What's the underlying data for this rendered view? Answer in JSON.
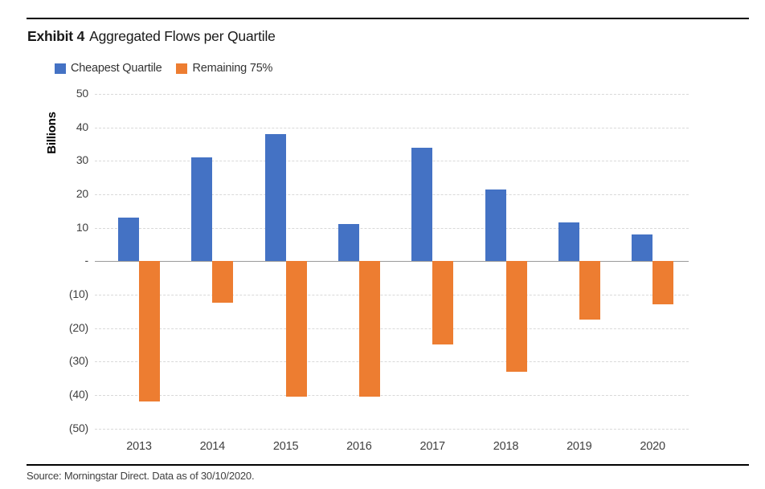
{
  "title": {
    "prefix": "Exhibit 4",
    "text": "Aggregated Flows per Quartile"
  },
  "legend": [
    {
      "label": "Cheapest Quartile",
      "color": "#4472C4"
    },
    {
      "label": "Remaining 75%",
      "color": "#ED7D31"
    }
  ],
  "y_axis": {
    "label": "Billions",
    "ticks": [
      "50",
      "40",
      "30",
      "20",
      "10",
      "-",
      "(10)",
      "(20)",
      "(30)",
      "(40)",
      "(50)"
    ],
    "tick_values": [
      50,
      40,
      30,
      20,
      10,
      0,
      -10,
      -20,
      -30,
      -40,
      -50
    ]
  },
  "chart_data": {
    "type": "bar",
    "title": "Exhibit 4 Aggregated Flows per Quartile",
    "categories": [
      "2013",
      "2014",
      "2015",
      "2016",
      "2017",
      "2018",
      "2019",
      "2020"
    ],
    "series": [
      {
        "name": "Cheapest Quartile",
        "color": "#4472C4",
        "values": [
          13,
          31,
          38,
          11,
          34,
          21.5,
          11.5,
          8
        ]
      },
      {
        "name": "Remaining 75%",
        "color": "#ED7D31",
        "values": [
          -42,
          -12.5,
          -40.5,
          -40.5,
          -25,
          -33,
          -17.5,
          -13
        ]
      }
    ],
    "xlabel": "",
    "ylabel": "Billions",
    "ylim": [
      -50,
      50
    ],
    "ytick_step": 10,
    "negative_tick_format": "parentheses",
    "grid": "horizontal-dashed",
    "legend_position": "top-left"
  },
  "source": "Source: Morningstar Direct. Data as of 30/10/2020."
}
